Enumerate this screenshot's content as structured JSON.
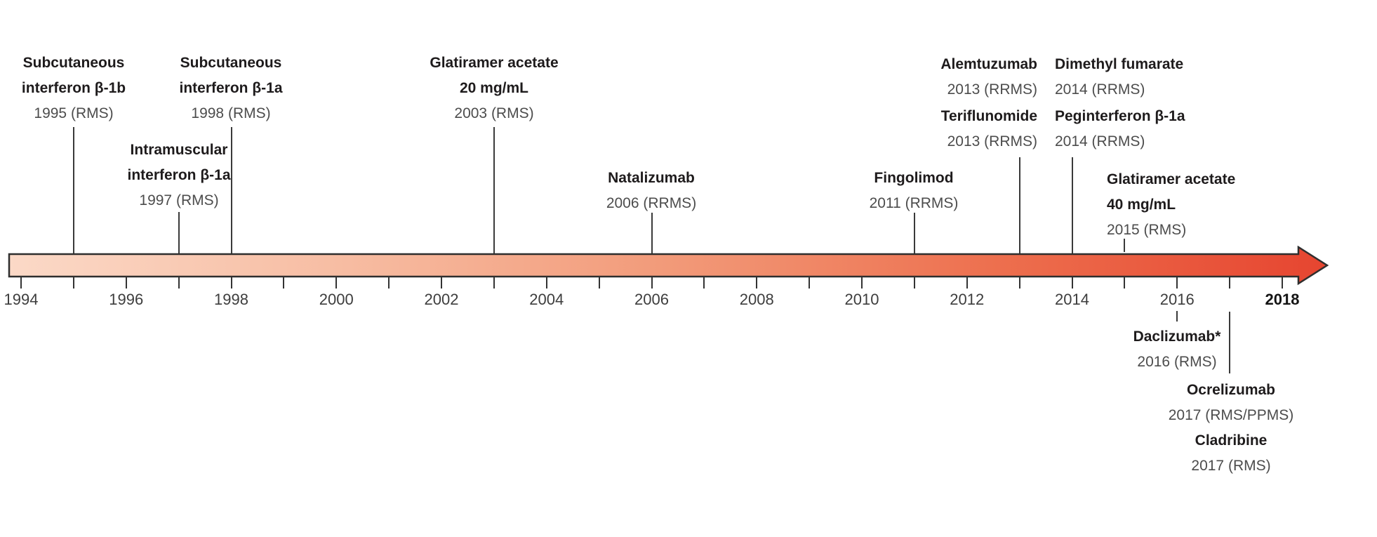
{
  "axis": {
    "tick_years": [
      1994,
      1995,
      1996,
      1997,
      1998,
      1999,
      2000,
      2001,
      2002,
      2003,
      2004,
      2005,
      2006,
      2007,
      2008,
      2009,
      2010,
      2011,
      2012,
      2013,
      2014,
      2015,
      2016,
      2017,
      2018
    ],
    "label_years": [
      "1994",
      "1996",
      "1998",
      "2000",
      "2002",
      "2004",
      "2006",
      "2008",
      "2010",
      "2012",
      "2014",
      "2016",
      "2018"
    ],
    "bold_label": "2018",
    "start_year": 1994,
    "end_year": 2018
  },
  "arrow": {
    "gradient_start": "#fbd9c7",
    "gradient_mid": "#f29a79",
    "gradient_end": "#e64530",
    "outline_color": "#2e2e2e"
  },
  "colors": {
    "drug_name_text": "#1e1b1c",
    "approval_text": "#4c4c4c",
    "connector_line": "#3a3a3a"
  },
  "events": [
    {
      "id": "subcutaneous_interferon_beta_1b",
      "name_lines": [
        "Subcutaneous",
        "interferon β-1b"
      ],
      "approval": "1995 (RMS)",
      "year": 1995,
      "side": "above"
    },
    {
      "id": "intramuscular_interferon_beta_1a",
      "name_lines": [
        "Intramuscular",
        "interferon β-1a"
      ],
      "approval": "1997 (RMS)",
      "year": 1997,
      "side": "above"
    },
    {
      "id": "subcutaneous_interferon_beta_1a",
      "name_lines": [
        "Subcutaneous",
        "interferon β-1a"
      ],
      "approval": "1998 (RMS)",
      "year": 1998,
      "side": "above"
    },
    {
      "id": "glatiramer_acetate_20",
      "name_lines": [
        "Glatiramer acetate",
        "20 mg/mL"
      ],
      "approval": "2003 (RMS)",
      "year": 2003,
      "side": "above"
    },
    {
      "id": "natalizumab",
      "name_lines": [
        "Natalizumab"
      ],
      "approval": "2006 (RRMS)",
      "year": 2006,
      "side": "above"
    },
    {
      "id": "fingolimod",
      "name_lines": [
        "Fingolimod"
      ],
      "approval": "2011 (RRMS)",
      "year": 2011,
      "side": "above"
    },
    {
      "id": "alemtuzumab",
      "name_lines": [
        "Alemtuzumab"
      ],
      "approval": "2013 (RRMS)",
      "year": 2013,
      "side": "above"
    },
    {
      "id": "teriflunomide",
      "name_lines": [
        "Teriflunomide"
      ],
      "approval": "2013 (RRMS)",
      "year": 2013,
      "side": "above"
    },
    {
      "id": "dimethyl_fumarate",
      "name_lines": [
        "Dimethyl fumarate"
      ],
      "approval": "2014 (RRMS)",
      "year": 2014,
      "side": "above"
    },
    {
      "id": "peginterferon_beta_1a",
      "name_lines": [
        "Peginterferon β-1a"
      ],
      "approval": "2014 (RRMS)",
      "year": 2014,
      "side": "above"
    },
    {
      "id": "glatiramer_acetate_40",
      "name_lines": [
        "Glatiramer acetate",
        "40 mg/mL"
      ],
      "approval": "2015 (RMS)",
      "year": 2015,
      "side": "above"
    },
    {
      "id": "daclizumab",
      "name_lines": [
        "Daclizumab*"
      ],
      "approval": "2016 (RMS)",
      "year": 2016,
      "side": "below"
    },
    {
      "id": "ocrelizumab",
      "name_lines": [
        "Ocrelizumab"
      ],
      "approval": "2017 (RMS/PPMS)",
      "year": 2017,
      "side": "below"
    },
    {
      "id": "cladribine",
      "name_lines": [
        "Cladribine"
      ],
      "approval": "2017 (RMS)",
      "year": 2017,
      "side": "below"
    }
  ]
}
